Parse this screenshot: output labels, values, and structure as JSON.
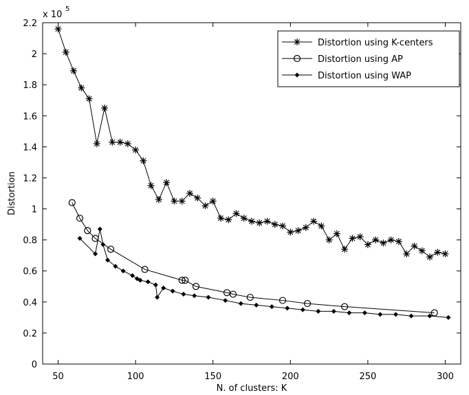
{
  "chart_data": {
    "type": "line",
    "title": "",
    "xlabel": "N. of clusters: K",
    "ylabel": "Distortion",
    "y_multiplier_label": "x 10",
    "y_multiplier_exponent": "5",
    "xlim": [
      40,
      310
    ],
    "ylim": [
      0,
      2.2
    ],
    "xticks": [
      50,
      100,
      150,
      200,
      250,
      300
    ],
    "yticks": [
      0,
      0.2,
      0.4,
      0.6,
      0.8,
      1,
      1.2,
      1.4,
      1.6,
      1.8,
      2,
      2.2
    ],
    "grid": false,
    "legend_position": "top-right",
    "series": [
      {
        "name": "Distortion using K-centers",
        "marker": "asterisk",
        "x": [
          50,
          55,
          60,
          65,
          70,
          75,
          80,
          85,
          90,
          95,
          100,
          105,
          110,
          115,
          120,
          125,
          130,
          135,
          140,
          145,
          150,
          155,
          160,
          165,
          170,
          175,
          180,
          185,
          190,
          195,
          200,
          205,
          210,
          215,
          220,
          225,
          230,
          235,
          240,
          245,
          250,
          255,
          260,
          265,
          270,
          275,
          280,
          285,
          290,
          295,
          300
        ],
        "y": [
          2.16,
          2.01,
          1.89,
          1.78,
          1.71,
          1.42,
          1.65,
          1.43,
          1.43,
          1.42,
          1.38,
          1.31,
          1.15,
          1.06,
          1.17,
          1.05,
          1.05,
          1.1,
          1.07,
          1.02,
          1.05,
          0.94,
          0.93,
          0.97,
          0.94,
          0.92,
          0.91,
          0.92,
          0.9,
          0.89,
          0.85,
          0.86,
          0.88,
          0.92,
          0.89,
          0.8,
          0.84,
          0.74,
          0.81,
          0.82,
          0.77,
          0.8,
          0.78,
          0.8,
          0.79,
          0.71,
          0.76,
          0.73,
          0.69,
          0.72,
          0.71
        ]
      },
      {
        "name": "Distortion using AP",
        "marker": "circle",
        "x": [
          59,
          64,
          69,
          74,
          84,
          106,
          130,
          132,
          139,
          159,
          163,
          174,
          195,
          211,
          235,
          293
        ],
        "y": [
          1.04,
          0.94,
          0.86,
          0.81,
          0.74,
          0.61,
          0.54,
          0.54,
          0.5,
          0.46,
          0.45,
          0.43,
          0.41,
          0.39,
          0.37,
          0.33
        ]
      },
      {
        "name": "Distortion using WAP",
        "marker": "diamond",
        "x": [
          64,
          74,
          77,
          79,
          82,
          87,
          92,
          98,
          101,
          103,
          108,
          113,
          114,
          118,
          124,
          131,
          138,
          147,
          158,
          168,
          178,
          188,
          198,
          208,
          218,
          228,
          238,
          248,
          258,
          268,
          278,
          290,
          302
        ],
        "y": [
          0.81,
          0.71,
          0.87,
          0.77,
          0.67,
          0.63,
          0.6,
          0.57,
          0.55,
          0.54,
          0.53,
          0.51,
          0.43,
          0.49,
          0.47,
          0.45,
          0.44,
          0.43,
          0.41,
          0.39,
          0.38,
          0.37,
          0.36,
          0.35,
          0.34,
          0.34,
          0.33,
          0.33,
          0.32,
          0.32,
          0.31,
          0.31,
          0.3
        ]
      }
    ]
  }
}
